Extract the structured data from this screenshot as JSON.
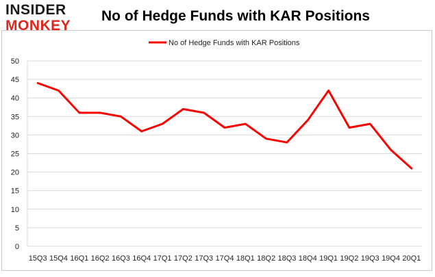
{
  "logo": {
    "line1": "INSIDER",
    "line2": "MONKEY"
  },
  "chart_data": {
    "type": "line",
    "title": "No of Hedge Funds with KAR Positions",
    "categories": [
      "15Q3",
      "15Q4",
      "16Q1",
      "16Q2",
      "16Q3",
      "16Q4",
      "17Q1",
      "17Q2",
      "17Q3",
      "17Q4",
      "18Q1",
      "18Q2",
      "18Q3",
      "18Q4",
      "19Q1",
      "19Q2",
      "19Q3",
      "19Q4",
      "20Q1"
    ],
    "series": [
      {
        "name": "No of Hedge Funds with KAR Positions",
        "values": [
          44,
          42,
          36,
          36,
          35,
          31,
          33,
          37,
          36,
          32,
          33,
          29,
          28,
          34,
          42,
          32,
          33,
          26,
          21
        ],
        "color": "#ff0000"
      }
    ],
    "ylim": [
      0,
      50
    ],
    "yticks": [
      0,
      5,
      10,
      15,
      20,
      25,
      30,
      35,
      40,
      45,
      50
    ],
    "grid": true,
    "legend": "top-center",
    "xlabel": "",
    "ylabel": ""
  }
}
